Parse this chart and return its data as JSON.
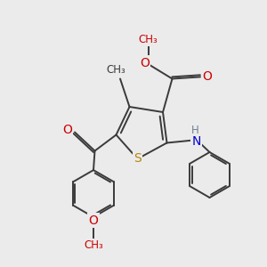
{
  "bg_color": "#ebebeb",
  "bond_color": "#3a3a3a",
  "bond_width": 1.4,
  "S_color": "#b8860b",
  "N_color": "#0000cc",
  "O_color": "#cc0000",
  "H_color": "#708090",
  "C_color": "#3a3a3a",
  "fig_width": 3.0,
  "fig_height": 3.0,
  "dpi": 100,
  "xlim": [
    0,
    10
  ],
  "ylim": [
    0,
    10
  ]
}
